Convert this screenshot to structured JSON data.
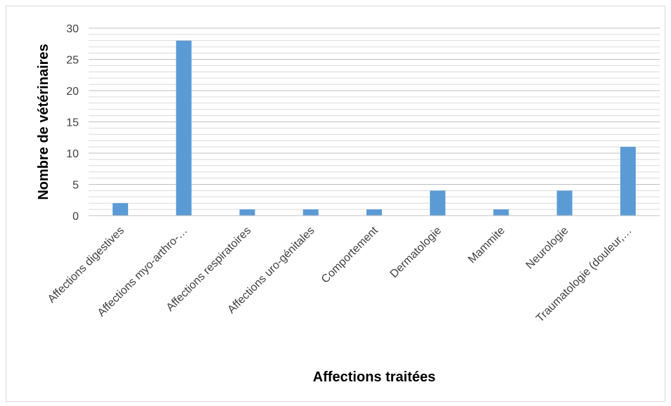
{
  "chart_data": {
    "type": "bar",
    "title": "",
    "xlabel": "Affections traitées",
    "ylabel": "Nombre de vétérinaires",
    "ylim": [
      0,
      30
    ],
    "yticks": [
      0,
      5,
      10,
      15,
      20,
      25,
      30
    ],
    "minor_grid_step": 1,
    "grid": true,
    "legend": "none",
    "bar_color": "#5b9bd5",
    "categories": [
      "Affections digestives",
      "Affections myo-arthro-…",
      "Affections respiratoires",
      "Affections uro-génitales",
      "Comportement",
      "Dermatologie",
      "Mammite",
      "Neurologie",
      "Traumatologie (douleur,…"
    ],
    "values": [
      2,
      28,
      1,
      1,
      1,
      4,
      1,
      4,
      11
    ]
  }
}
